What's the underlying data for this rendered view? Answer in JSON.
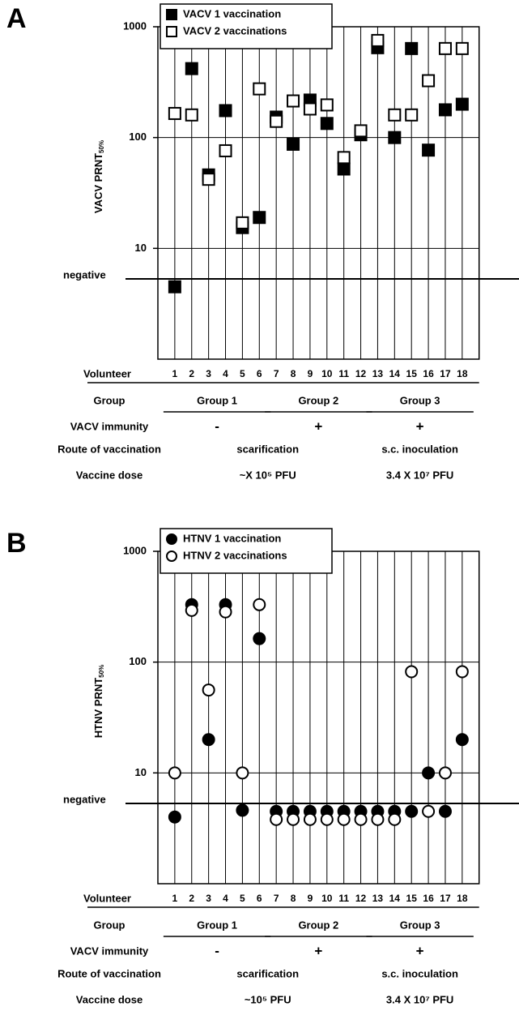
{
  "chart_data": [
    {
      "type": "scatter",
      "title": "A",
      "ylabel": "VACV PRNT",
      "ylabel_sub": "50%",
      "log_scale": true,
      "grid": true,
      "marker": "square",
      "legend": "upper left",
      "x_label": "Volunteer",
      "categories": [
        "1",
        "2",
        "3",
        "4",
        "5",
        "6",
        "7",
        "8",
        "9",
        "10",
        "11",
        "12",
        "13",
        "14",
        "15",
        "16",
        "17",
        "18"
      ],
      "series": [
        {
          "name": "VACV 1 vaccination",
          "color": "#000000",
          "fill": "#000000",
          "values": [
            4.5,
            419,
            46,
            175,
            15.4,
            19,
            153,
            87,
            218,
            134,
            52,
            106,
            647,
            100,
            636,
            77,
            178,
            200
          ]
        },
        {
          "name": "VACV 2 vaccinations",
          "color": "#000000",
          "fill": "#ffffff",
          "values": [
            165,
            160,
            42,
            76,
            17,
            275,
            140,
            214,
            181,
            197,
            66,
            115,
            752,
            160,
            160,
            326,
            636,
            636
          ]
        }
      ],
      "ylim": [
        1,
        1000
      ],
      "yticks": [
        10,
        100,
        1000
      ],
      "reference_line": {
        "value": 5.3,
        "label": "negative"
      },
      "rows": [
        {
          "label": "Group",
          "cells": [
            "Group 1",
            "Group 2",
            "Group 3"
          ]
        },
        {
          "label": "VACV immunity",
          "cells": [
            "-",
            "+",
            "+"
          ]
        },
        {
          "label": "Route of vaccination",
          "cells": [
            "scarification",
            "s.c. inoculation"
          ]
        },
        {
          "label": "Vaccine dose",
          "cells": [
            "~X 10⁵ PFU",
            "3.4 X 10⁷ PFU"
          ]
        }
      ]
    },
    {
      "type": "scatter",
      "title": "B",
      "ylabel": "HTNV PRNT",
      "ylabel_sub": "50%",
      "log_scale": true,
      "grid": true,
      "marker": "circle",
      "legend": "upper left",
      "x_label": "Volunteer",
      "categories": [
        "1",
        "2",
        "3",
        "4",
        "5",
        "6",
        "7",
        "8",
        "9",
        "10",
        "11",
        "12",
        "13",
        "14",
        "15",
        "16",
        "17",
        "18"
      ],
      "series": [
        {
          "name": "HTNV 1 vaccination",
          "color": "#000000",
          "fill": "#000000",
          "values": [
            4.0,
            330,
            20,
            330,
            4.6,
            163,
            4.5,
            4.5,
            4.5,
            4.5,
            4.5,
            4.5,
            4.5,
            4.5,
            4.5,
            10,
            4.5,
            20
          ]
        },
        {
          "name": "HTNV 2 vaccinations",
          "color": "#000000",
          "fill": "#ffffff",
          "values": [
            10,
            293,
            56,
            284,
            10,
            330,
            3.8,
            3.8,
            3.8,
            3.8,
            3.8,
            3.8,
            3.8,
            3.8,
            82,
            4.5,
            10,
            82
          ]
        }
      ],
      "ylim": [
        1,
        1000
      ],
      "yticks": [
        10,
        100,
        1000
      ],
      "reference_line": {
        "value": 5.3,
        "label": "negative"
      },
      "rows": [
        {
          "label": "Group",
          "cells": [
            "Group 1",
            "Group 2",
            "Group 3"
          ]
        },
        {
          "label": "VACV immunity",
          "cells": [
            "-",
            "+",
            "+"
          ]
        },
        {
          "label": "Route of vaccination",
          "cells": [
            "scarification",
            "s.c. inoculation"
          ]
        },
        {
          "label": "Vaccine dose",
          "cells": [
            "~10⁵ PFU",
            "3.4 X 10⁷ PFU"
          ]
        }
      ]
    }
  ]
}
